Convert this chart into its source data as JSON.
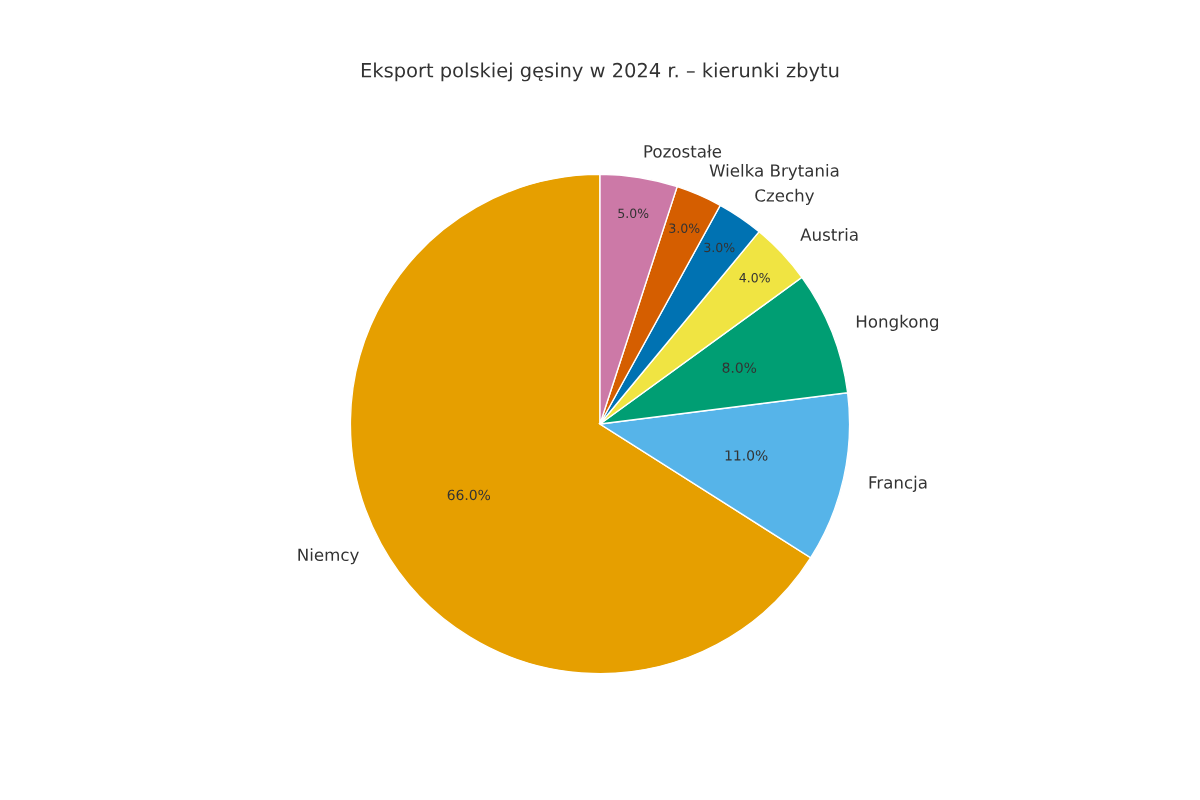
{
  "chart_data": {
    "type": "pie",
    "title": "Eksport polskiej gęsiny w 2024 r. – kierunki zbytu",
    "categories": [
      "Niemcy",
      "Francja",
      "Hongkong",
      "Austria",
      "Czechy",
      "Wielka Brytania",
      "Pozostałe"
    ],
    "values": [
      66,
      11,
      8,
      4,
      3,
      3,
      5
    ],
    "colors": [
      "#e69f00",
      "#56b4e9",
      "#009e73",
      "#f0e442",
      "#0072b2",
      "#d55e00",
      "#cc79a7"
    ],
    "value_labels": [
      "66.0%",
      "11.0%",
      "8.0%",
      "4.0%",
      "3.0%",
      "3.0%",
      "5.0%"
    ]
  }
}
